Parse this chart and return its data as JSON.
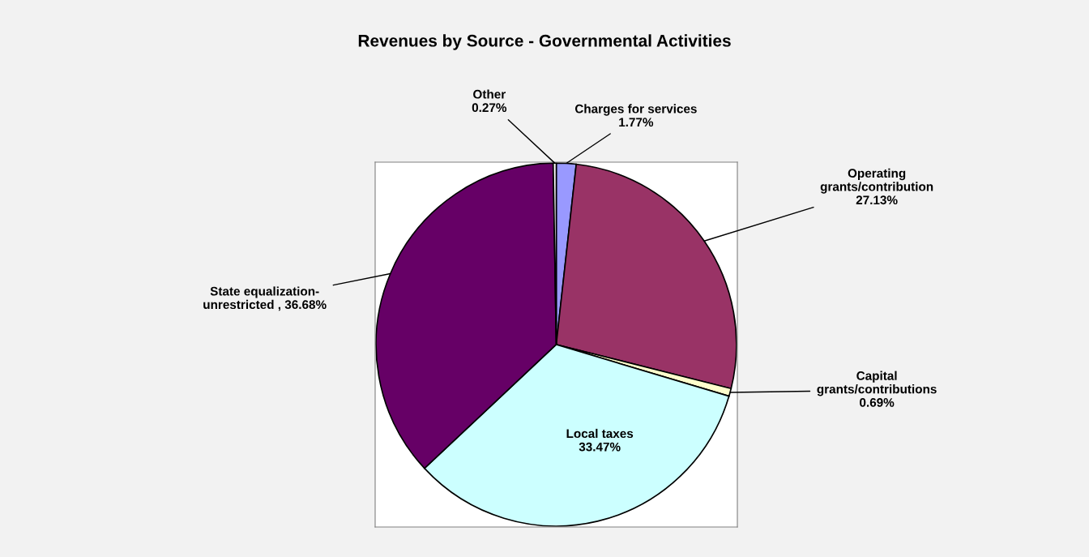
{
  "chart_data": {
    "type": "pie",
    "title": "Revenues by Source - Governmental Activities",
    "categories": [
      "Charges for services",
      "Operating\ngrants/contribution",
      "Capital\ngrants/contributions",
      "Local taxes",
      "State equalization-\nunrestricted",
      "Other"
    ],
    "values": [
      1.77,
      27.13,
      0.69,
      33.47,
      36.68,
      0.27
    ],
    "value_labels": [
      "1.77%",
      "27.13%",
      "0.69%",
      "33.47%",
      "36.68%",
      "0.27%"
    ],
    "colors": [
      "#9999ff",
      "#993366",
      "#ffffcc",
      "#ccffff",
      "#660066",
      "#ffffff"
    ]
  }
}
